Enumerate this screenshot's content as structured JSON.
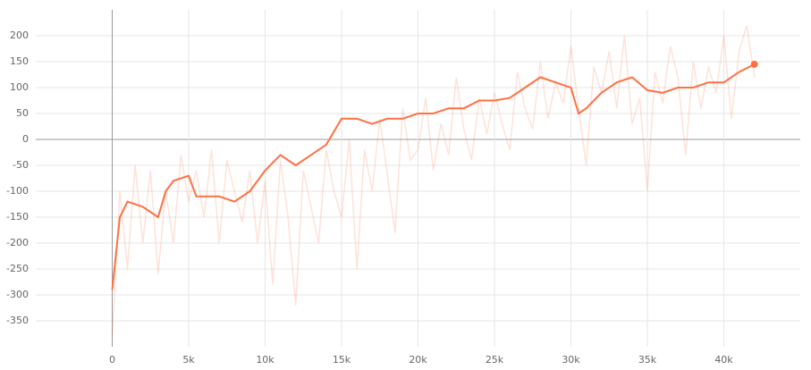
{
  "chart_data": {
    "type": "line",
    "xlim": [
      -5000,
      45000
    ],
    "ylim": [
      -400,
      250
    ],
    "xticks": [
      0,
      {
        "value": 5000,
        "label": "5k"
      },
      {
        "value": 10000,
        "label": "10k"
      },
      {
        "value": 15000,
        "label": "15k"
      },
      {
        "value": 20000,
        "label": "20k"
      },
      {
        "value": 25000,
        "label": "25k"
      },
      {
        "value": 30000,
        "label": "30k"
      },
      {
        "value": 35000,
        "label": "35k"
      },
      {
        "value": 40000,
        "label": "40k"
      }
    ],
    "yticks": [
      -350,
      -300,
      -250,
      -200,
      -150,
      -100,
      -50,
      0,
      50,
      100,
      150,
      200
    ],
    "grid": true,
    "series": [
      {
        "color": "#ff7043",
        "style": "raw",
        "x": [
          0,
          500,
          1000,
          1500,
          2000,
          2500,
          3000,
          3500,
          4000,
          4500,
          5000,
          5500,
          6000,
          6500,
          7000,
          7500,
          8000,
          8500,
          9000,
          9500,
          10000,
          10500,
          11000,
          11500,
          12000,
          12500,
          13000,
          13500,
          14000,
          14500,
          15000,
          15500,
          16000,
          16500,
          17000,
          17500,
          18000,
          18500,
          19000,
          19500,
          20000,
          20500,
          21000,
          21500,
          22000,
          22500,
          23000,
          23500,
          24000,
          24500,
          25000,
          25500,
          26000,
          26500,
          27000,
          27500,
          28000,
          28500,
          29000,
          29500,
          30000,
          30500,
          31000,
          31500,
          32000,
          32500,
          33000,
          33500,
          34000,
          34500,
          35000,
          35500,
          36000,
          36500,
          37000,
          37500,
          38000,
          38500,
          39000,
          39500,
          40000,
          40500,
          41000,
          41500,
          42000
        ],
        "values": [
          -380,
          -100,
          -250,
          -50,
          -200,
          -60,
          -260,
          -100,
          -200,
          -30,
          -120,
          -60,
          -150,
          -20,
          -200,
          -40,
          -100,
          -160,
          -60,
          -200,
          -80,
          -280,
          -40,
          -150,
          -320,
          -60,
          -130,
          -200,
          -20,
          -100,
          -150,
          0,
          -250,
          -20,
          -100,
          40,
          -70,
          -180,
          60,
          -40,
          -20,
          80,
          -60,
          30,
          -30,
          120,
          20,
          -40,
          80,
          10,
          90,
          30,
          -20,
          130,
          60,
          20,
          150,
          40,
          110,
          70,
          180,
          60,
          -50,
          140,
          90,
          170,
          60,
          200,
          30,
          80,
          -100,
          130,
          70,
          180,
          120,
          -30,
          150,
          60,
          140,
          90,
          200,
          40,
          170,
          220,
          120
        ]
      },
      {
        "color": "#ff7043",
        "style": "smoothed",
        "x": [
          0,
          500,
          1000,
          2000,
          3000,
          3500,
          4000,
          5000,
          5500,
          6000,
          7000,
          8000,
          9000,
          10000,
          11000,
          12000,
          13000,
          14000,
          15000,
          16000,
          17000,
          18000,
          19000,
          20000,
          21000,
          22000,
          23000,
          24000,
          25000,
          26000,
          27000,
          28000,
          29000,
          30000,
          30500,
          31000,
          32000,
          33000,
          34000,
          35000,
          36000,
          37000,
          38000,
          39000,
          40000,
          41000,
          42000
        ],
        "values": [
          -290,
          -150,
          -120,
          -130,
          -150,
          -100,
          -80,
          -70,
          -110,
          -110,
          -110,
          -120,
          -100,
          -60,
          -30,
          -50,
          -30,
          -10,
          40,
          40,
          30,
          40,
          40,
          50,
          50,
          60,
          60,
          75,
          75,
          80,
          100,
          120,
          110,
          100,
          50,
          60,
          90,
          110,
          120,
          95,
          90,
          100,
          100,
          110,
          110,
          130,
          145
        ]
      }
    ]
  }
}
